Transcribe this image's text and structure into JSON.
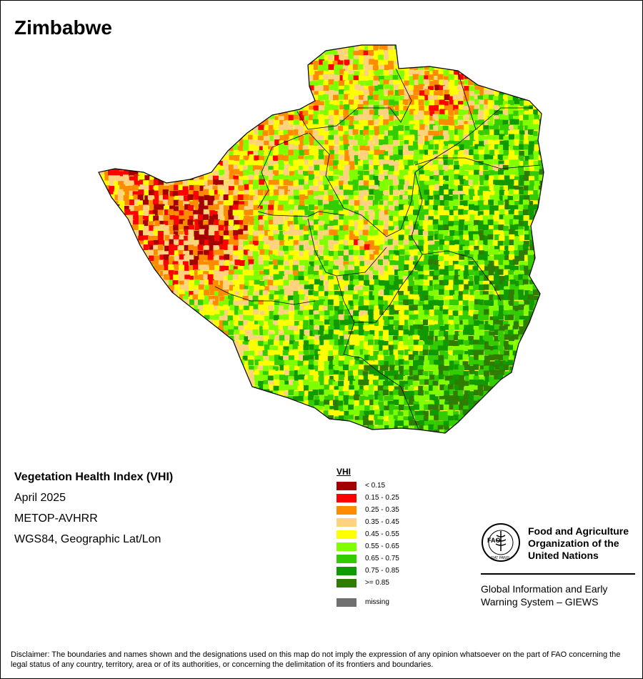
{
  "map": {
    "title": "Zimbabwe"
  },
  "info": {
    "product": "Vegetation Health Index (VHI)",
    "date": "April 2025",
    "sensor": "METOP-AVHRR",
    "projection": "WGS84, Geographic Lat/Lon"
  },
  "legend": {
    "title": "VHI",
    "classes": [
      {
        "label": "< 0.15",
        "color": "#a50000"
      },
      {
        "label": "0.15 - 0.25",
        "color": "#ff0000"
      },
      {
        "label": "0.25 - 0.35",
        "color": "#ff8c00"
      },
      {
        "label": "0.35 - 0.45",
        "color": "#ffd27f"
      },
      {
        "label": "0.45 - 0.55",
        "color": "#ffff00"
      },
      {
        "label": "0.55 - 0.65",
        "color": "#7fff00"
      },
      {
        "label": "0.65 - 0.75",
        "color": "#33cc00"
      },
      {
        "label": "0.75 - 0.85",
        "color": "#119900"
      },
      {
        "label": ">= 0.85",
        "color": "#2e7d00"
      }
    ],
    "missing": {
      "label": "missing",
      "color": "#707070"
    }
  },
  "fao": {
    "name_line1": "Food and Agriculture",
    "name_line2": "Organization of the",
    "name_line3": "United Nations",
    "logo_letters": "FAO",
    "logo_motto": "FIAT PANIS",
    "giews_line1": "Global Information and Early",
    "giews_line2": "Warning System – GIEWS"
  },
  "disclaimer": "Disclaimer: The boundaries and names shown and the designations used on this map do not imply the expression of any opinion whatsoever on the part of FAO concerning the legal status of any country, territory, area or of its authorities, or concerning the delimitation of its frontiers and boundaries."
}
